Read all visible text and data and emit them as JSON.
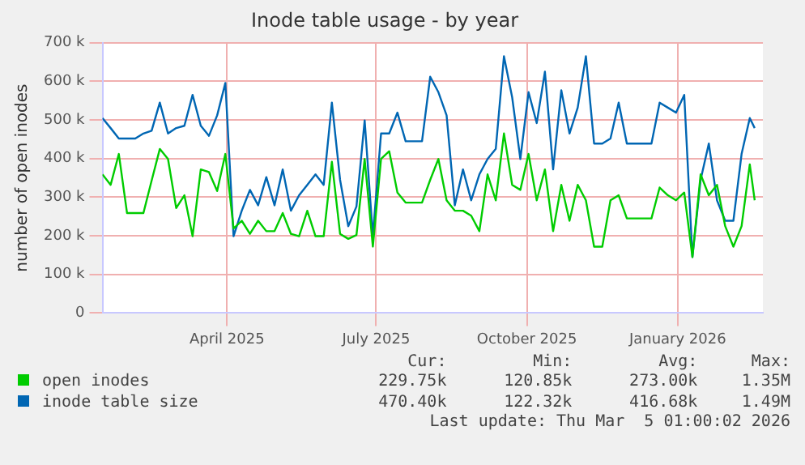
{
  "chart_data": {
    "type": "line",
    "title": "Inode table usage - by year",
    "ylabel": "number of open inodes",
    "x": [
      "2025-01-15",
      "2025-01-20",
      "2025-01-25",
      "2025-01-30",
      "2025-02-04",
      "2025-02-09",
      "2025-02-14",
      "2025-02-19",
      "2025-02-24",
      "2025-03-01",
      "2025-03-06",
      "2025-03-11",
      "2025-03-16",
      "2025-03-21",
      "2025-03-26",
      "2025-03-31",
      "2025-04-05",
      "2025-04-10",
      "2025-04-15",
      "2025-04-20",
      "2025-04-25",
      "2025-04-30",
      "2025-05-05",
      "2025-05-10",
      "2025-05-15",
      "2025-05-20",
      "2025-05-25",
      "2025-05-30",
      "2025-06-04",
      "2025-06-09",
      "2025-06-14",
      "2025-06-19",
      "2025-06-24",
      "2025-06-29",
      "2025-07-04",
      "2025-07-09",
      "2025-07-14",
      "2025-07-19",
      "2025-07-24",
      "2025-07-29",
      "2025-08-03",
      "2025-08-08",
      "2025-08-13",
      "2025-08-18",
      "2025-08-23",
      "2025-08-28",
      "2025-09-02",
      "2025-09-07",
      "2025-09-12",
      "2025-09-17",
      "2025-09-22",
      "2025-09-27",
      "2025-10-02",
      "2025-10-07",
      "2025-10-12",
      "2025-10-17",
      "2025-10-22",
      "2025-10-27",
      "2025-11-01",
      "2025-11-06",
      "2025-11-11",
      "2025-11-16",
      "2025-11-21",
      "2025-11-26",
      "2025-12-01",
      "2025-12-06",
      "2025-12-11",
      "2025-12-16",
      "2025-12-21",
      "2025-12-26",
      "2025-12-31",
      "2026-01-05",
      "2026-01-10",
      "2026-01-15",
      "2026-01-20",
      "2026-01-25",
      "2026-01-30",
      "2026-02-04",
      "2026-02-09",
      "2026-02-14",
      "2026-02-17"
    ],
    "series": [
      {
        "name": "open inodes",
        "color": "#00cc00",
        "values": [
          359000,
          332000,
          412000,
          259000,
          259000,
          259000,
          343000,
          425000,
          399000,
          272000,
          305000,
          199000,
          372000,
          365000,
          316000,
          412000,
          219000,
          239000,
          205000,
          239000,
          212000,
          212000,
          259000,
          205000,
          199000,
          265000,
          199000,
          199000,
          392000,
          205000,
          192000,
          202000,
          399000,
          172000,
          399000,
          419000,
          312000,
          286000,
          286000,
          286000,
          345000,
          399000,
          292000,
          265000,
          265000,
          252000,
          212000,
          359000,
          292000,
          465000,
          332000,
          319000,
          412000,
          292000,
          372000,
          212000,
          332000,
          239000,
          332000,
          292000,
          172000,
          172000,
          292000,
          305000,
          245000,
          245000,
          245000,
          245000,
          325000,
          305000,
          292000,
          312000,
          145000,
          359000,
          305000,
          332000,
          225000,
          172000,
          225000,
          385000,
          292000
        ]
      },
      {
        "name": "inode table size",
        "color": "#0066b3",
        "values": [
          505000,
          479000,
          452000,
          452000,
          452000,
          465000,
          472000,
          545000,
          465000,
          479000,
          485000,
          565000,
          485000,
          459000,
          512000,
          596000,
          199000,
          265000,
          319000,
          279000,
          352000,
          279000,
          372000,
          265000,
          305000,
          332000,
          359000,
          332000,
          545000,
          345000,
          225000,
          276000,
          499000,
          199000,
          465000,
          465000,
          519000,
          445000,
          445000,
          445000,
          612000,
          572000,
          512000,
          279000,
          372000,
          292000,
          359000,
          399000,
          425000,
          665000,
          559000,
          399000,
          572000,
          492000,
          625000,
          372000,
          577000,
          465000,
          532000,
          665000,
          439000,
          439000,
          452000,
          545000,
          439000,
          439000,
          439000,
          439000,
          545000,
          532000,
          519000,
          565000,
          145000,
          345000,
          439000,
          292000,
          239000,
          239000,
          412000,
          505000,
          479000
        ]
      }
    ],
    "xlim": [
      "2025-01-15",
      "2026-02-22"
    ],
    "xticks": [
      {
        "value": "2025-04-01",
        "label": "April 2025"
      },
      {
        "value": "2025-07-01",
        "label": "July 2025"
      },
      {
        "value": "2025-10-01",
        "label": "October 2025"
      },
      {
        "value": "2026-01-01",
        "label": "January 2026"
      }
    ],
    "ylim": [
      0,
      700000
    ],
    "yticks": [
      0,
      {
        "value": 100000,
        "label": "100 k"
      },
      {
        "value": 200000,
        "label": "200 k"
      },
      {
        "value": 300000,
        "label": "300 k"
      },
      {
        "value": 400000,
        "label": "400 k"
      },
      {
        "value": 500000,
        "label": "500 k"
      },
      {
        "value": 600000,
        "label": "600 k"
      },
      {
        "value": 700000,
        "label": "700 k"
      }
    ],
    "grid": true,
    "legend": "bottom",
    "marker": "none",
    "line_style": "solid",
    "annotations": [
      "Cur:",
      "Min:",
      "Avg:",
      "Max:",
      "229.75k",
      "120.85k",
      "273.00k",
      "1.35M",
      "470.40k",
      "122.32k",
      "416.68k",
      "1.49M",
      "Last update: Thu Mar  5 01:00:02 2026"
    ]
  }
}
